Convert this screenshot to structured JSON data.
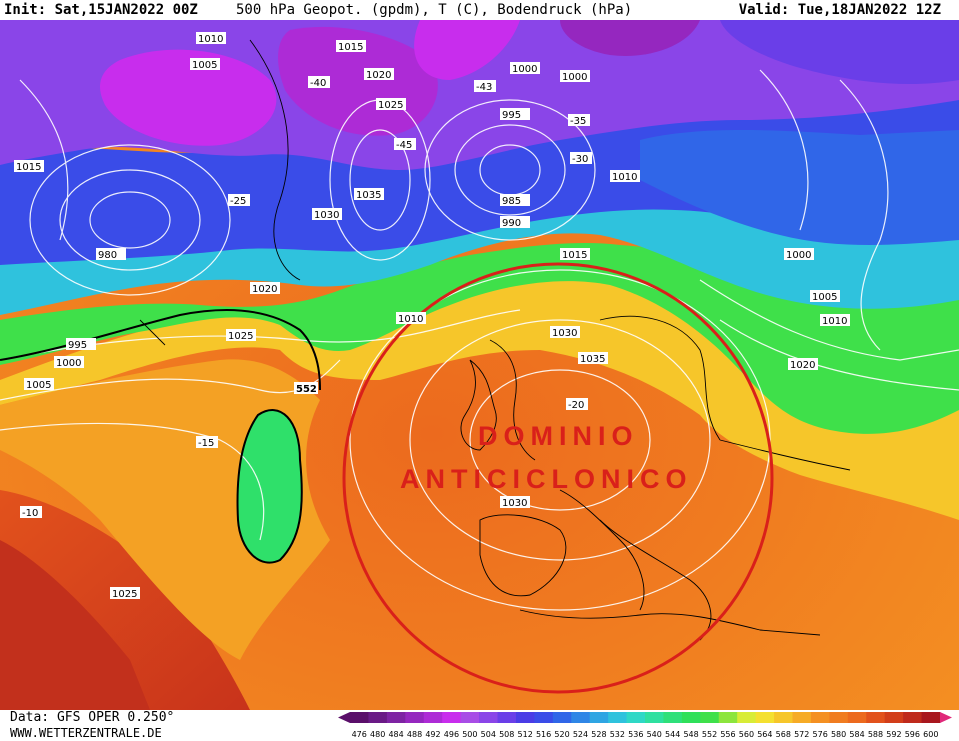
{
  "header": {
    "init": "Init: Sat,15JAN2022 00Z",
    "title": "500 hPa Geopot. (gpdm), T (C), Bodendruck (hPa)",
    "valid": "Valid: Tue,18JAN2022 12Z"
  },
  "footer": {
    "data_source": "Data: GFS OPER 0.250°",
    "website": "WWW.WETTERZENTRALE.DE"
  },
  "annotation": {
    "line1": "DOMINIO",
    "line2": "ANTICICLONICO",
    "circle_color": "#d9201a"
  },
  "map": {
    "geopotential_label_552": "552",
    "pressure_labels": [
      "1010",
      "1015",
      "1005",
      "1020",
      "1025",
      "1030",
      "1035",
      "1000",
      "995",
      "990",
      "985",
      "980",
      "1010",
      "1015",
      "1000",
      "1000",
      "1005",
      "1010",
      "1020",
      "1025",
      "1030",
      "1035",
      "1010",
      "1015",
      "1005",
      "1000",
      "995",
      "1020",
      "1025",
      "1030"
    ],
    "temperature_labels": [
      "-40",
      "-43",
      "-45",
      "-35",
      "-30",
      "-25",
      "-20",
      "-15",
      "-10"
    ]
  },
  "scale": {
    "values": [
      "476",
      "480",
      "484",
      "488",
      "492",
      "496",
      "500",
      "504",
      "508",
      "512",
      "516",
      "520",
      "524",
      "528",
      "532",
      "536",
      "540",
      "544",
      "548",
      "552",
      "556",
      "560",
      "564",
      "568",
      "572",
      "576",
      "580",
      "584",
      "588",
      "592",
      "596",
      "600"
    ],
    "colors": [
      "#5a0f6a",
      "#6a1a86",
      "#7e23a3",
      "#9527bf",
      "#ad2bd6",
      "#c82ded",
      "#a84de6",
      "#8a45e8",
      "#6a3ee8",
      "#4a3ce6",
      "#3a4ce8",
      "#3066e8",
      "#2f86e6",
      "#2ea5e3",
      "#2fc2dd",
      "#2fd8c6",
      "#2fe0a0",
      "#2fe07a",
      "#2fe05a",
      "#3fe04a",
      "#8ce53d",
      "#d8ec37",
      "#f4e030",
      "#f6c62a",
      "#f6ab26",
      "#f49022",
      "#f07c20",
      "#ec6a1e",
      "#e2521c",
      "#d23e1a",
      "#bf2a1c",
      "#a8171e"
    ]
  }
}
